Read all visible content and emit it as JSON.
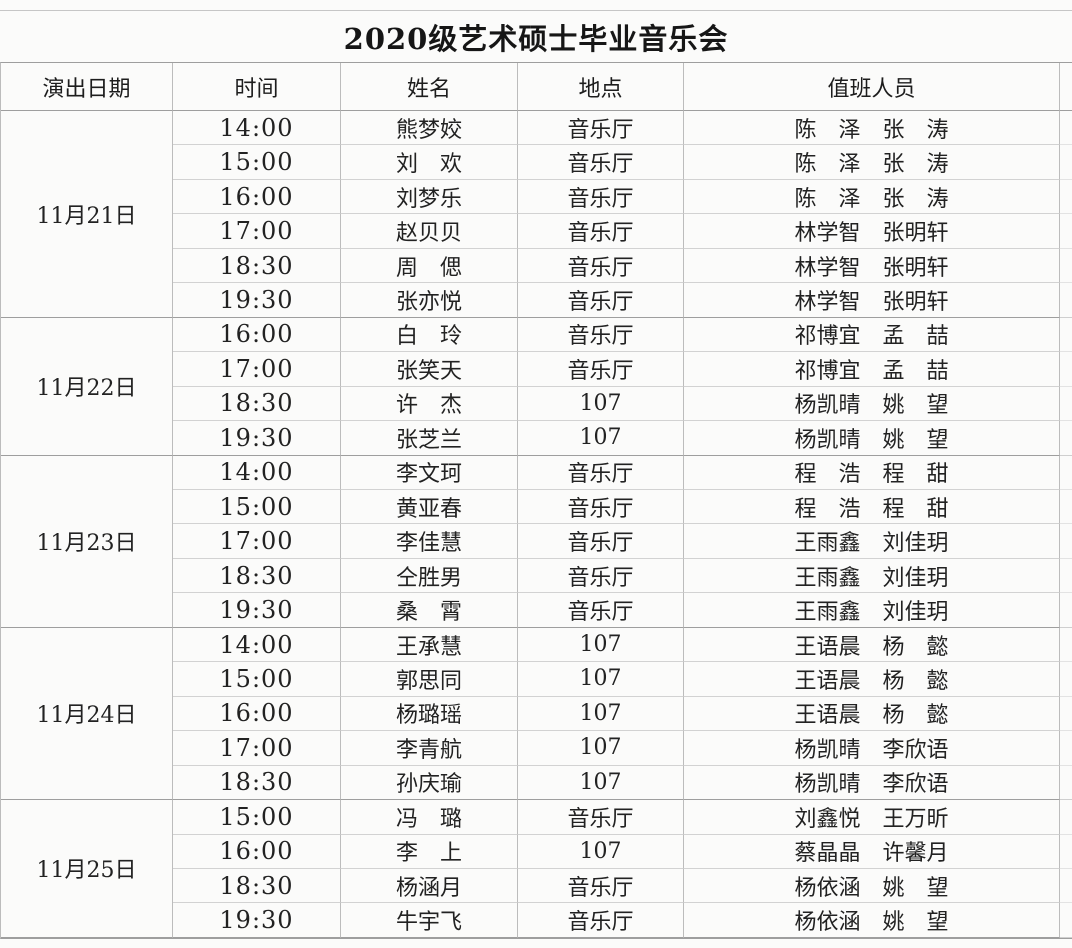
{
  "title": "2020级艺术硕士毕业音乐会",
  "columns": [
    "演出日期",
    "时间",
    "姓名",
    "地点",
    "值班人员"
  ],
  "groups": [
    {
      "date": "11月21日",
      "rows": [
        {
          "time": "14:00",
          "name": "熊梦姣",
          "place": "音乐厅",
          "staff": "陈　泽　张　涛"
        },
        {
          "time": "15:00",
          "name": "刘　欢",
          "place": "音乐厅",
          "staff": "陈　泽　张　涛"
        },
        {
          "time": "16:00",
          "name": "刘梦乐",
          "place": "音乐厅",
          "staff": "陈　泽　张　涛"
        },
        {
          "time": "17:00",
          "name": "赵贝贝",
          "place": "音乐厅",
          "staff": "林学智　张明轩"
        },
        {
          "time": "18:30",
          "name": "周　偲",
          "place": "音乐厅",
          "staff": "林学智　张明轩"
        },
        {
          "time": "19:30",
          "name": "张亦悦",
          "place": "音乐厅",
          "staff": "林学智　张明轩"
        }
      ]
    },
    {
      "date": "11月22日",
      "rows": [
        {
          "time": "16:00",
          "name": "白　玲",
          "place": "音乐厅",
          "staff": "祁博宜　孟　喆"
        },
        {
          "time": "17:00",
          "name": "张笑天",
          "place": "音乐厅",
          "staff": "祁博宜　孟　喆"
        },
        {
          "time": "18:30",
          "name": "许　杰",
          "place": "107",
          "staff": "杨凯晴　姚　望"
        },
        {
          "time": "19:30",
          "name": "张芝兰",
          "place": "107",
          "staff": "杨凯晴　姚　望"
        }
      ]
    },
    {
      "date": "11月23日",
      "rows": [
        {
          "time": "14:00",
          "name": "李文珂",
          "place": "音乐厅",
          "staff": "程　浩　程　甜"
        },
        {
          "time": "15:00",
          "name": "黄亚春",
          "place": "音乐厅",
          "staff": "程　浩　程　甜"
        },
        {
          "time": "17:00",
          "name": "李佳慧",
          "place": "音乐厅",
          "staff": "王雨鑫　刘佳玥"
        },
        {
          "time": "18:30",
          "name": "仝胜男",
          "place": "音乐厅",
          "staff": "王雨鑫　刘佳玥"
        },
        {
          "time": "19:30",
          "name": "桑　霄",
          "place": "音乐厅",
          "staff": "王雨鑫　刘佳玥"
        }
      ]
    },
    {
      "date": "11月24日",
      "rows": [
        {
          "time": "14:00",
          "name": "王承慧",
          "place": "107",
          "staff": "王语晨　杨　懿"
        },
        {
          "time": "15:00",
          "name": "郭思同",
          "place": "107",
          "staff": "王语晨　杨　懿"
        },
        {
          "time": "16:00",
          "name": "杨璐瑶",
          "place": "107",
          "staff": "王语晨　杨　懿"
        },
        {
          "time": "17:00",
          "name": "李青航",
          "place": "107",
          "staff": "杨凯晴　李欣语"
        },
        {
          "time": "18:30",
          "name": "孙庆瑜",
          "place": "107",
          "staff": "杨凯晴　李欣语"
        }
      ]
    },
    {
      "date": "11月25日",
      "rows": [
        {
          "time": "15:00",
          "name": "冯　璐",
          "place": "音乐厅",
          "staff": "刘鑫悦　王万昕"
        },
        {
          "time": "16:00",
          "name": "李　上",
          "place": "107",
          "staff": "蔡晶晶　许馨月"
        },
        {
          "time": "18:30",
          "name": "杨涵月",
          "place": "音乐厅",
          "staff": "杨依涵　姚　望"
        },
        {
          "time": "19:30",
          "name": "牛宇飞",
          "place": "音乐厅",
          "staff": "杨依涵　姚　望"
        }
      ]
    }
  ],
  "colors": {
    "background": "#fbfbfa",
    "text": "#222222",
    "grid_line_light": "#d2d2d2",
    "grid_line_dark": "#9e9e9e"
  }
}
